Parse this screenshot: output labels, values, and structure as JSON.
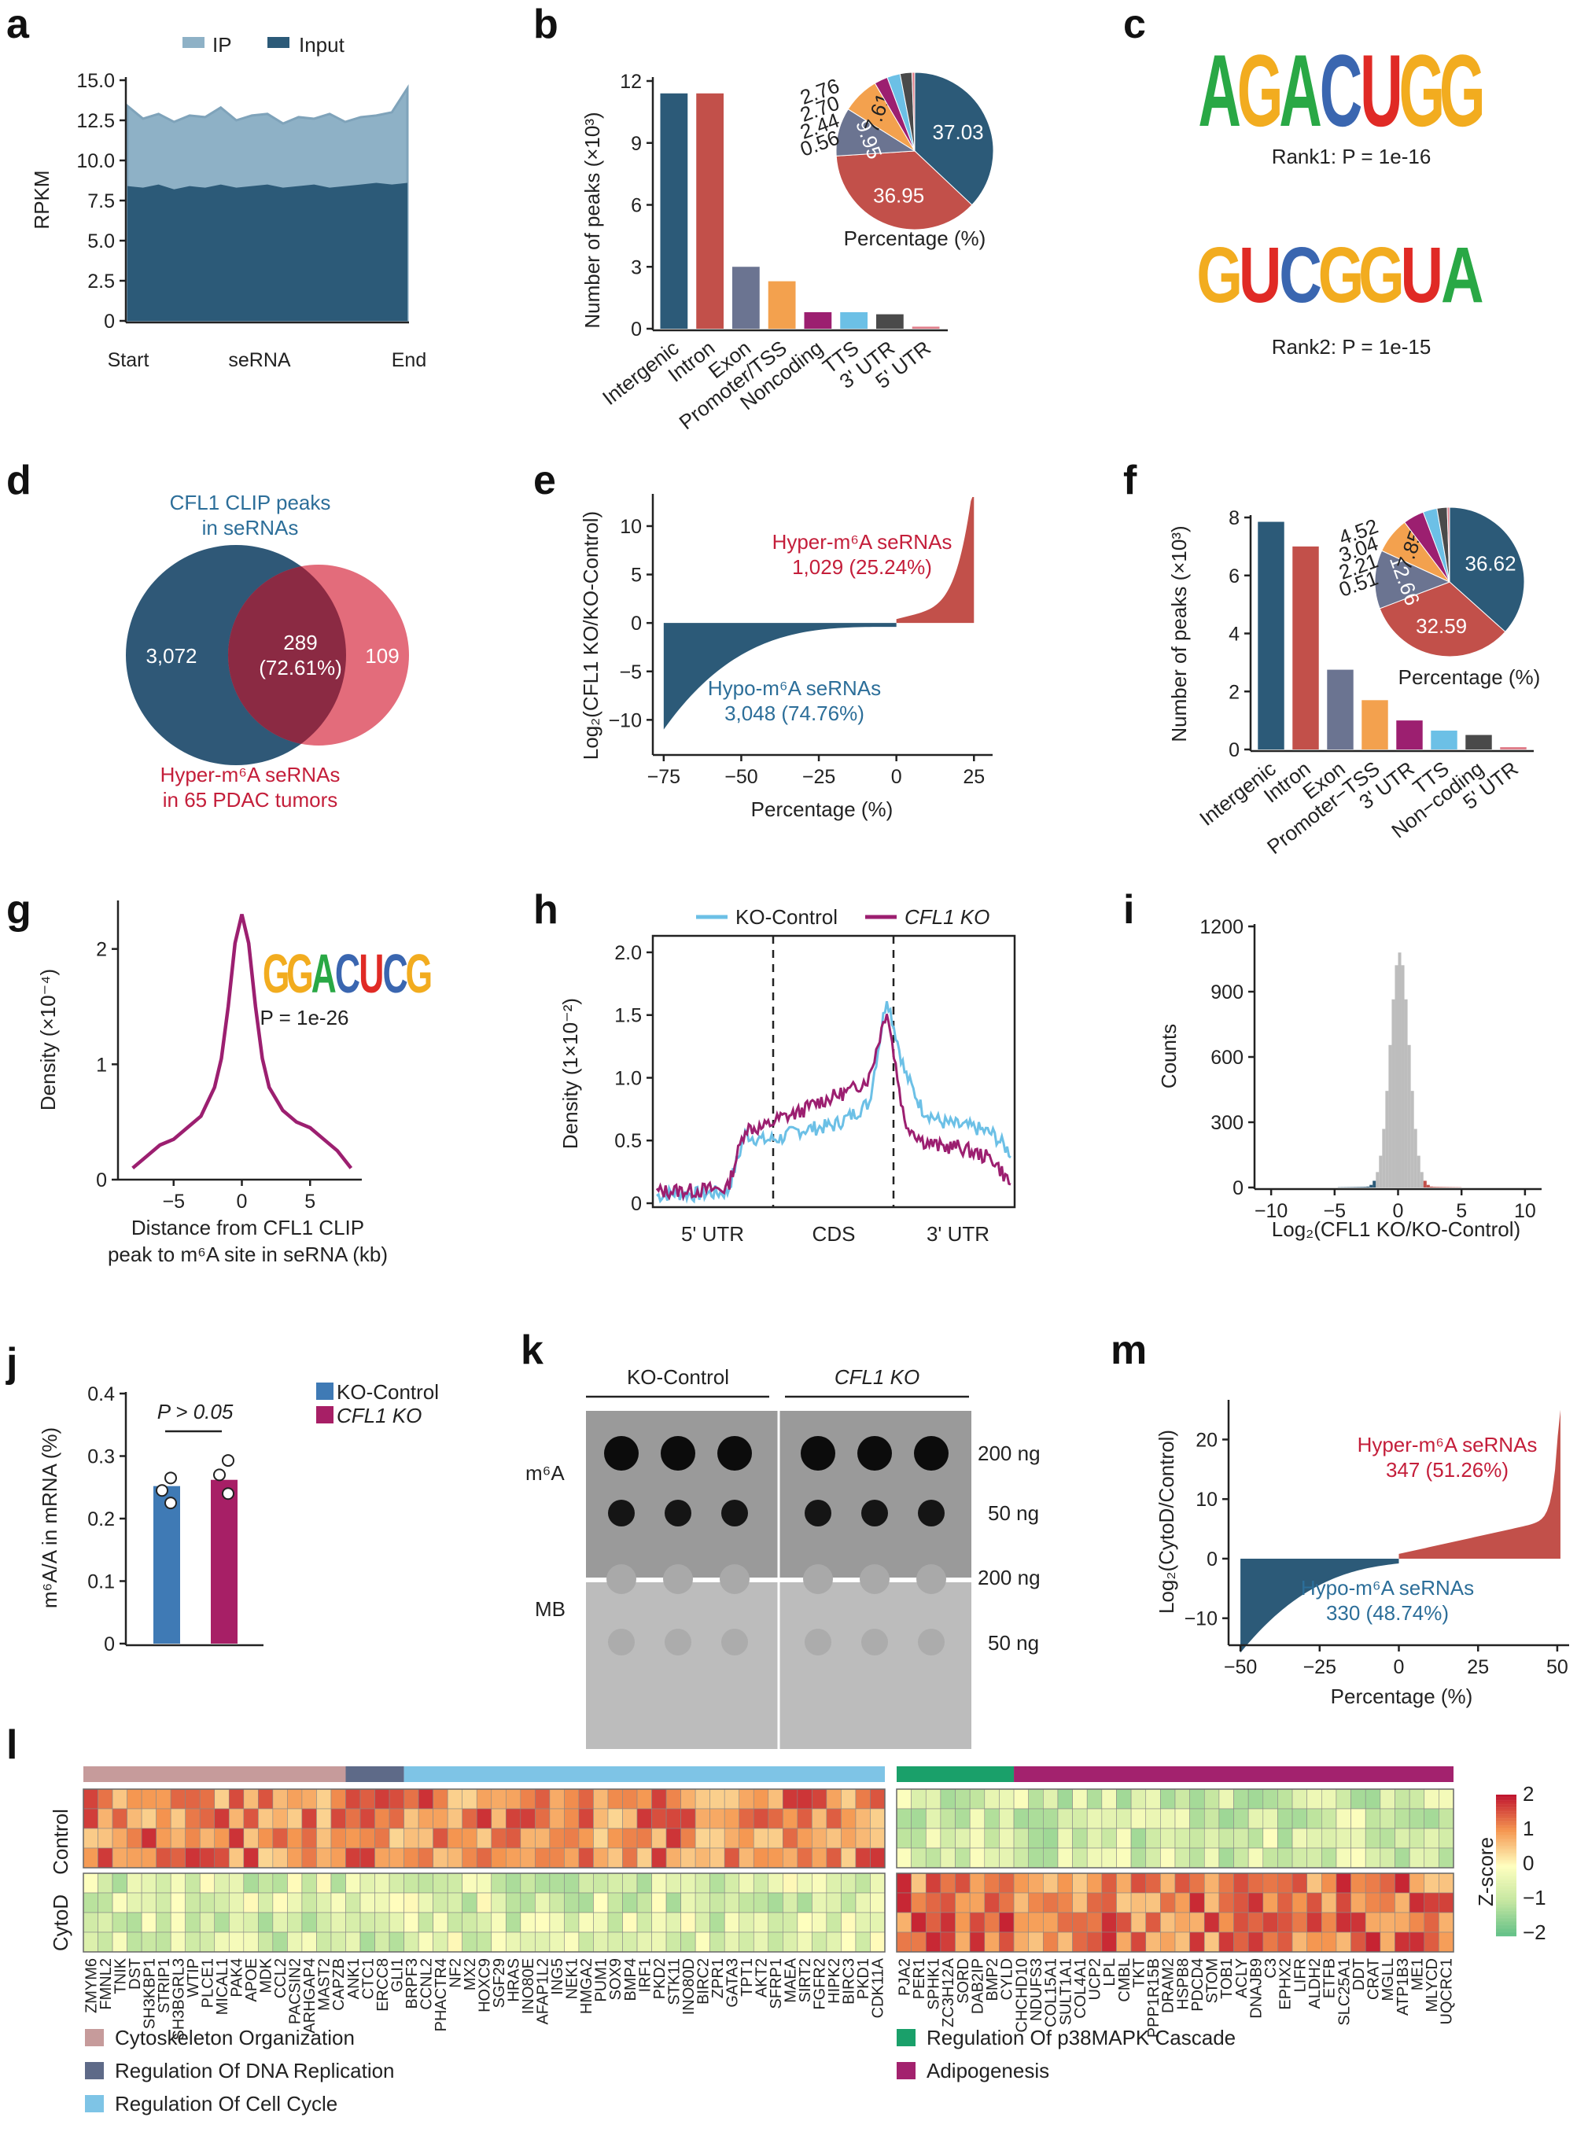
{
  "colors": {
    "navy": "#2c5a78",
    "lightblue": "#8eb1c6",
    "red": "#c2504a",
    "slate": "#6b7491",
    "orange": "#f3a14e",
    "magenta": "#9c1f70",
    "cyan": "#6cc0e6",
    "dark": "#4a4a4a",
    "pink": "#e07e8a",
    "heat_hi": "#c0152f",
    "heat_mid": "#ffffbf",
    "heat_lo": "#5fbf86",
    "rose": "#c69b9b"
  },
  "panels": {
    "a": "a",
    "b": "b",
    "c": "c",
    "d": "d",
    "e": "e",
    "f": "f",
    "g": "g",
    "h": "h",
    "i": "i",
    "j": "j",
    "k": "k",
    "m": "m",
    "l": "l"
  },
  "chart_data": [
    {
      "id": "a",
      "type": "area",
      "ylabel": "RPKM",
      "yticks": [
        "0",
        "2.5",
        "5.0",
        "7.5",
        "10.0",
        "12.5",
        "15.0"
      ],
      "xticks": [
        "Start",
        "seRNA",
        "End"
      ],
      "ylim": [
        0,
        15
      ],
      "series": [
        {
          "name": "IP",
          "values": [
            13.4,
            12.6,
            12.9,
            12.4,
            12.8,
            12.7,
            13.3,
            12.5,
            12.8,
            12.9,
            12.3,
            12.7,
            12.6,
            12.9,
            12.4,
            12.7,
            12.8,
            13.0,
            14.5
          ]
        },
        {
          "name": "Input",
          "values": [
            8.4,
            8.3,
            8.5,
            8.2,
            8.4,
            8.3,
            8.5,
            8.3,
            8.4,
            8.5,
            8.3,
            8.4,
            8.5,
            8.3,
            8.4,
            8.5,
            8.6,
            8.5,
            8.6
          ]
        }
      ]
    },
    {
      "id": "b",
      "type": "bar",
      "ylabel": "Number of peaks (×10³)",
      "yticks": [
        "0",
        "3",
        "6",
        "9",
        "12"
      ],
      "ylim": [
        0,
        12
      ],
      "categories": [
        "Intergenic",
        "Intron",
        "Exon",
        "Promoter/TSS",
        "Noncoding",
        "TTS",
        "3' UTR",
        "5' UTR"
      ],
      "values": [
        11.4,
        11.4,
        3.0,
        2.3,
        0.8,
        0.8,
        0.7,
        0.1
      ],
      "pie": {
        "label": "Percentage (%)",
        "values": [
          37.03,
          36.95,
          9.95,
          7.61,
          2.76,
          2.7,
          2.44,
          0.56
        ],
        "labels": [
          "37.03",
          "36.95",
          "9.95",
          "7.61",
          "2.76",
          "2.70",
          "2.44",
          "0.56"
        ]
      }
    },
    {
      "id": "c",
      "type": "table",
      "motifs": [
        {
          "seq": "AGACUGG",
          "caption": "Rank1: P = 1e-16"
        },
        {
          "seq": "GUCGGUA",
          "caption": "Rank2: P = 1e-15"
        }
      ]
    },
    {
      "id": "d",
      "type": "table",
      "venn": {
        "top_label": "CFL1 CLIP peaks",
        "top_label2": "in seRNAs",
        "bottom_label": "Hyper-m⁶A seRNAs",
        "bottom_label2": "in 65 PDAC tumors",
        "left": "3,072",
        "mid": "289",
        "mid2": "(72.61%)",
        "right": "109"
      }
    },
    {
      "id": "e",
      "type": "area",
      "ylabel": "Log₂(CFL1 KO/KO-Control)",
      "xlabel": "Percentage (%)",
      "xticks": [
        "−75",
        "−50",
        "−25",
        "0",
        "25"
      ],
      "yticks": [
        "−10",
        "−5",
        "0",
        "5",
        "10"
      ],
      "xlim": [
        -78,
        30
      ],
      "ylim": [
        -12,
        13
      ],
      "annotations": [
        "Hyper-m⁶A seRNAs",
        "1,029 (25.24%)",
        "Hypo-m⁶A seRNAs",
        "3,048 (74.76%)"
      ]
    },
    {
      "id": "f",
      "type": "bar",
      "ylabel": "Number of peaks (×10³)",
      "yticks": [
        "0",
        "2",
        "4",
        "6",
        "8"
      ],
      "ylim": [
        0,
        8
      ],
      "categories": [
        "Intergenic",
        "Intron",
        "Exon",
        "Promoter−TSS",
        "3' UTR",
        "TTS",
        "Non−coding",
        "5' UTR"
      ],
      "values": [
        7.85,
        7.0,
        2.75,
        1.7,
        1.0,
        0.65,
        0.5,
        0.08
      ],
      "pie": {
        "label": "Percentage (%)",
        "values": [
          36.62,
          32.59,
          12.66,
          7.85,
          4.52,
          3.04,
          2.21,
          0.51
        ],
        "labels": [
          "36.62",
          "32.59",
          "12.66",
          "7.85",
          "4.52",
          "3.04",
          "2.21",
          "0.51"
        ]
      }
    },
    {
      "id": "g",
      "type": "line",
      "ylabel": "Density (×10⁻⁴)",
      "xlabel": "Distance from CFL1 CLIP",
      "xlabel2": "peak to m⁶A site in seRNA (kb)",
      "xticks": [
        "−5",
        "0",
        "5"
      ],
      "yticks": [
        "0",
        "1",
        "2"
      ],
      "xlim": [
        -8.5,
        8.5
      ],
      "ylim": [
        0,
        2.4
      ],
      "motif": {
        "seq": "GGACUCG",
        "caption": "P = 1e-26"
      },
      "x": [
        -8,
        -7,
        -6,
        -5,
        -4,
        -3,
        -2,
        -1.5,
        -1,
        -0.5,
        0,
        0.5,
        1,
        1.5,
        2,
        3,
        4,
        5,
        6,
        7,
        8
      ],
      "values": [
        0.1,
        0.2,
        0.3,
        0.35,
        0.45,
        0.55,
        0.8,
        1.05,
        1.5,
        2.05,
        2.3,
        2.05,
        1.5,
        1.05,
        0.8,
        0.6,
        0.5,
        0.45,
        0.35,
        0.25,
        0.1
      ]
    },
    {
      "id": "h",
      "type": "line",
      "ylabel": "Density (1×10⁻²)",
      "yticks": [
        "0",
        "0.5",
        "1.0",
        "1.5",
        "2.0"
      ],
      "xticks": [
        "5' UTR",
        "CDS",
        "3' UTR"
      ],
      "ylim": [
        0,
        2.1
      ],
      "series": [
        {
          "name": "KO-Control",
          "values": [
            0.06,
            0.08,
            0.07,
            0.08,
            0.09,
            0.55,
            0.5,
            0.52,
            0.58,
            0.6,
            0.62,
            0.7,
            0.8,
            1.65,
            1.05,
            0.75,
            0.65,
            0.62,
            0.6,
            0.55,
            0.4
          ]
        },
        {
          "name": "CFL1 KO",
          "values": [
            0.09,
            0.1,
            0.1,
            0.11,
            0.12,
            0.6,
            0.6,
            0.68,
            0.72,
            0.8,
            0.85,
            0.9,
            1.0,
            1.55,
            0.65,
            0.5,
            0.45,
            0.45,
            0.4,
            0.35,
            0.15
          ]
        }
      ]
    },
    {
      "id": "i",
      "type": "bar",
      "ylabel": "Counts",
      "xlabel": "Log₂(CFL1 KO/KO-Control)",
      "xticks": [
        "−10",
        "−5",
        "0",
        "5",
        "10"
      ],
      "yticks": [
        "0",
        "300",
        "600",
        "900",
        "1200"
      ],
      "xlim": [
        -11,
        11
      ],
      "ylim": [
        0,
        1200
      ]
    },
    {
      "id": "j",
      "type": "bar",
      "ylabel": "m⁶A/A in mRNA (%)",
      "yticks": [
        "0",
        "0.1",
        "0.2",
        "0.3",
        "0.4"
      ],
      "ylim": [
        0,
        0.4
      ],
      "series": [
        {
          "name": "KO-Control",
          "value": 0.252,
          "points": [
            0.225,
            0.245,
            0.265
          ]
        },
        {
          "name": "CFL1 KO",
          "value": 0.262,
          "points": [
            0.24,
            0.27,
            0.293
          ]
        }
      ],
      "annotation": "P > 0.05"
    },
    {
      "id": "k",
      "type": "table",
      "groups": [
        "KO-Control",
        "CFL1 KO"
      ],
      "rows": [
        "m⁶A",
        "MB"
      ],
      "amounts": [
        "200 ng",
        "50 ng",
        "200 ng",
        "50 ng"
      ]
    },
    {
      "id": "m",
      "type": "area",
      "ylabel": "Log₂(CytoD/Control)",
      "xlabel": "Percentage (%)",
      "xticks": [
        "−50",
        "−25",
        "0",
        "25",
        "50"
      ],
      "yticks": [
        "−10",
        "0",
        "10",
        "20"
      ],
      "xlim": [
        -53,
        53
      ],
      "ylim": [
        -14,
        26
      ],
      "annotations": [
        "Hyper-m⁶A seRNAs",
        "347 (51.26%)",
        "Hypo-m⁶A seRNAs",
        "330 (48.74%)"
      ]
    },
    {
      "id": "l",
      "type": "heatmap",
      "row_group_labels": [
        "CytoD",
        "Control"
      ],
      "colorbar_label": "Z-score",
      "colorbar_ticks": [
        "2",
        "1",
        "0",
        "−1",
        "−2"
      ],
      "genes_left": [
        "ZMYM6",
        "FMNL2",
        "TNIK",
        "DST",
        "SH3KBP1",
        "STRIP1",
        "SH3BGRL3",
        "WTIP",
        "PLCE1",
        "MICAL1",
        "PAK4",
        "APOE",
        "MDK",
        "CCL2",
        "PACSIN2",
        "ARHGAP4",
        "MAST2",
        "CAPZB",
        "ANK1",
        "CTC1",
        "ERCC8",
        "GLI1",
        "BRPF3",
        "CCNL2",
        "PHACTR4",
        "NF2",
        "MX2",
        "HOXC9",
        "SGF29",
        "HRAS",
        "INO80E",
        "AFAP1L2",
        "ING5",
        "NEK1",
        "HMGA2",
        "PUM1",
        "SOX9",
        "BMP4",
        "IRF1",
        "PKD2",
        "STK11",
        "INO80D",
        "BIRC2",
        "ZPR1",
        "GATA3",
        "TPT1",
        "AKT2",
        "SFRP1",
        "MAEA",
        "SIRT2",
        "FGFR2",
        "HIPK2",
        "BIRC3",
        "PKD1",
        "CDK11A"
      ],
      "genes_right": [
        "PJA2",
        "PER1",
        "SPHK1",
        "ZC3H12A",
        "SORD",
        "DAB2IP",
        "BMP2",
        "CYLD",
        "CHCHD10",
        "NDUFS3",
        "COL15A1",
        "SULT1A1",
        "COL4A1",
        "UCP2",
        "LPL",
        "CMBL",
        "TKT",
        "PPP1R15B",
        "DRAM2",
        "HSPB8",
        "PDCD4",
        "STOM",
        "TOB1",
        "ACLY",
        "DNAJB9",
        "C3",
        "EPHX2",
        "LIFR",
        "ALDH2",
        "ETFB",
        "SLC25A1",
        "DDT",
        "CRAT",
        "MGLL",
        "ATP1B3",
        "ME1",
        "MLYCD",
        "UQCRC1"
      ],
      "group_legend": [
        "Cytoskeleton Organization",
        "Regulation Of DNA Replication",
        "Regulation Of Cell Cycle",
        "Regulation Of p38MAPK Cascade",
        "Adipogenesis"
      ]
    }
  ]
}
